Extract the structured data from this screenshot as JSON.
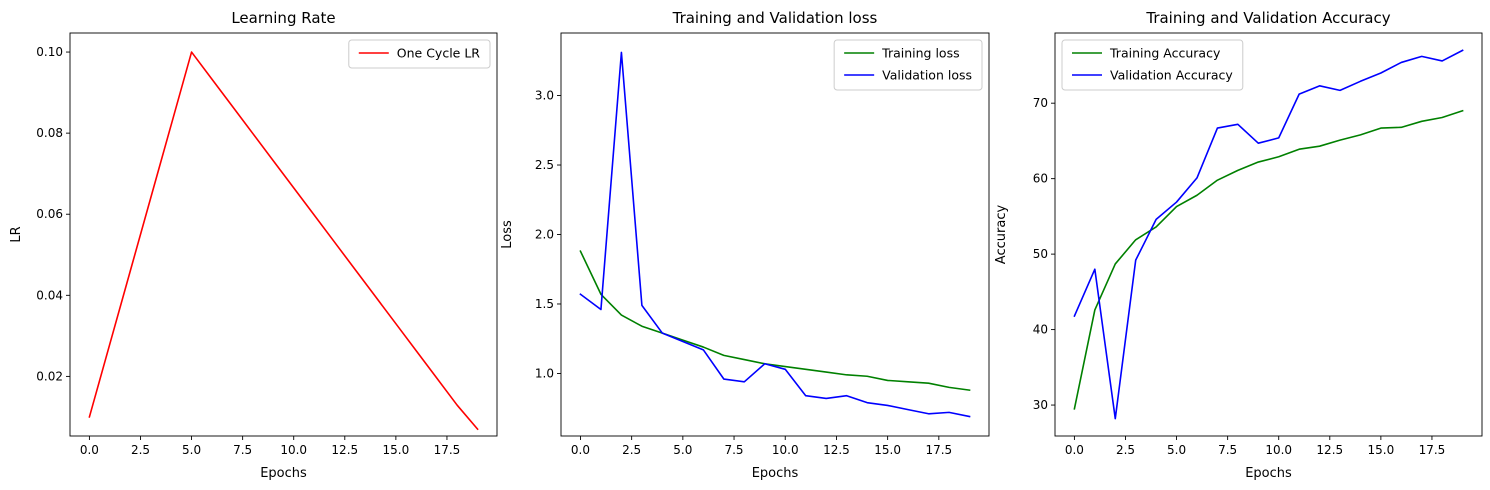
{
  "chart_data": [
    {
      "type": "line",
      "title": "Learning Rate",
      "xlabel": "Epochs",
      "ylabel": "LR",
      "xlim": [
        -0.95,
        19.95
      ],
      "ylim": [
        0.0053,
        0.1047
      ],
      "xticks": [
        0,
        2.5,
        5,
        7.5,
        10,
        12.5,
        15,
        17.5
      ],
      "xtick_labels": [
        "0.0",
        "2.5",
        "5.0",
        "7.5",
        "10.0",
        "12.5",
        "15.0",
        "17.5"
      ],
      "yticks": [
        0.02,
        0.04,
        0.06,
        0.08,
        0.1
      ],
      "ytick_labels": [
        "0.02",
        "0.04",
        "0.06",
        "0.08",
        "0.10"
      ],
      "legend_position": "upper-right",
      "series": [
        {
          "name": "One Cycle LR",
          "color": "#ff0000",
          "x": [
            0,
            1,
            2,
            3,
            4,
            5,
            6,
            7,
            8,
            9,
            10,
            11,
            12,
            13,
            14,
            15,
            16,
            17,
            18,
            19
          ],
          "y": [
            0.01,
            0.028,
            0.046,
            0.064,
            0.082,
            0.1,
            0.0933,
            0.0866,
            0.0799,
            0.0732,
            0.0665,
            0.0598,
            0.0531,
            0.0464,
            0.0397,
            0.033,
            0.0263,
            0.0196,
            0.0129,
            0.007
          ]
        }
      ]
    },
    {
      "type": "line",
      "title": "Training and Validation loss",
      "xlabel": "Epochs",
      "ylabel": "Loss",
      "xlim": [
        -0.95,
        19.95
      ],
      "ylim": [
        0.55,
        3.45
      ],
      "xticks": [
        0,
        2.5,
        5,
        7.5,
        10,
        12.5,
        15,
        17.5
      ],
      "xtick_labels": [
        "0.0",
        "2.5",
        "5.0",
        "7.5",
        "10.0",
        "12.5",
        "15.0",
        "17.5"
      ],
      "yticks": [
        1.0,
        1.5,
        2.0,
        2.5,
        3.0
      ],
      "ytick_labels": [
        "1.0",
        "1.5",
        "2.0",
        "2.5",
        "3.0"
      ],
      "legend_position": "upper-right",
      "series": [
        {
          "name": "Training loss",
          "color": "#008000",
          "x": [
            0,
            1,
            2,
            3,
            4,
            5,
            6,
            7,
            8,
            9,
            10,
            11,
            12,
            13,
            14,
            15,
            16,
            17,
            18,
            19
          ],
          "y": [
            1.88,
            1.57,
            1.42,
            1.34,
            1.29,
            1.24,
            1.19,
            1.13,
            1.1,
            1.07,
            1.05,
            1.03,
            1.01,
            0.99,
            0.98,
            0.95,
            0.94,
            0.93,
            0.9,
            0.88
          ]
        },
        {
          "name": "Validation loss",
          "color": "#0000ff",
          "x": [
            0,
            1,
            2,
            3,
            4,
            5,
            6,
            7,
            8,
            9,
            10,
            11,
            12,
            13,
            14,
            15,
            16,
            17,
            18,
            19
          ],
          "y": [
            1.57,
            1.46,
            3.31,
            1.49,
            1.29,
            1.23,
            1.17,
            0.96,
            0.94,
            1.07,
            1.03,
            0.84,
            0.82,
            0.84,
            0.79,
            0.77,
            0.74,
            0.71,
            0.72,
            0.69
          ]
        }
      ]
    },
    {
      "type": "line",
      "title": "Training and Validation Accuracy",
      "xlabel": "Epochs",
      "ylabel": "Accuracy",
      "xlim": [
        -0.95,
        19.95
      ],
      "ylim": [
        25.9,
        79.3
      ],
      "xticks": [
        0,
        2.5,
        5,
        7.5,
        10,
        12.5,
        15,
        17.5
      ],
      "xtick_labels": [
        "0.0",
        "2.5",
        "5.0",
        "7.5",
        "10.0",
        "12.5",
        "15.0",
        "17.5"
      ],
      "yticks": [
        30,
        40,
        50,
        60,
        70
      ],
      "ytick_labels": [
        "30",
        "40",
        "50",
        "60",
        "70"
      ],
      "legend_position": "upper-left",
      "series": [
        {
          "name": "Training Accuracy",
          "color": "#008000",
          "x": [
            0,
            1,
            2,
            3,
            4,
            5,
            6,
            7,
            8,
            9,
            10,
            11,
            12,
            13,
            14,
            15,
            16,
            17,
            18,
            19
          ],
          "y": [
            29.5,
            42.6,
            48.7,
            51.9,
            53.6,
            56.3,
            57.8,
            59.8,
            61.1,
            62.2,
            62.9,
            63.9,
            64.3,
            65.1,
            65.8,
            66.7,
            66.8,
            67.6,
            68.1,
            69.0
          ]
        },
        {
          "name": "Validation Accuracy",
          "color": "#0000ff",
          "x": [
            0,
            1,
            2,
            3,
            4,
            5,
            6,
            7,
            8,
            9,
            10,
            11,
            12,
            13,
            14,
            15,
            16,
            17,
            18,
            19
          ],
          "y": [
            41.8,
            48.0,
            28.2,
            49.2,
            54.6,
            56.9,
            60.1,
            66.7,
            67.2,
            64.7,
            65.4,
            71.2,
            72.3,
            71.7,
            72.9,
            74.0,
            75.4,
            76.2,
            75.6,
            77.0
          ]
        }
      ]
    }
  ]
}
